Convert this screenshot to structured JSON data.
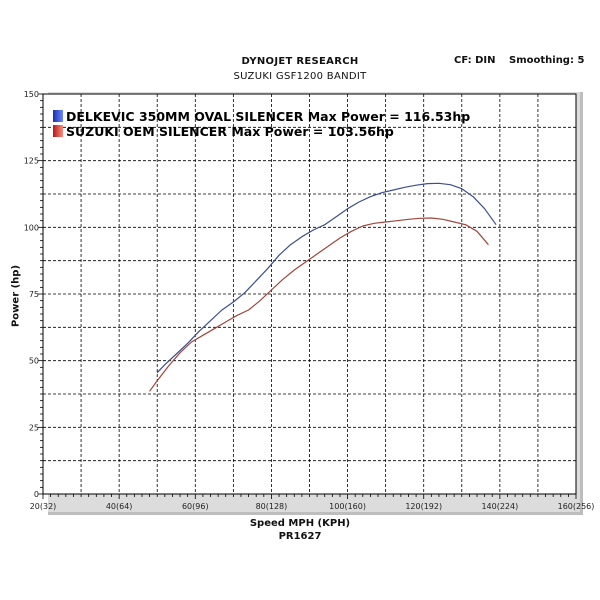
{
  "header": {
    "title": "DYNOJET RESEARCH",
    "subtitle": "SUZUKI GSF1200 BANDIT",
    "cf": "CF: DIN",
    "smoothing": "Smoothing: 5"
  },
  "chart_data": {
    "type": "line",
    "title": "DYNOJET RESEARCH",
    "subtitle": "SUZUKI GSF1200 BANDIT",
    "xlabel": "Speed MPH (KPH)",
    "ylabel": "Power (hp)",
    "note": "PR1627",
    "xlim": [
      20,
      160
    ],
    "ylim": [
      0,
      150
    ],
    "grid": true,
    "legend_position": "top-left",
    "x_ticks": [
      {
        "value": 20,
        "label": "20(32)"
      },
      {
        "value": 40,
        "label": "40(64)"
      },
      {
        "value": 60,
        "label": "60(96)"
      },
      {
        "value": 80,
        "label": "80(128)"
      },
      {
        "value": 100,
        "label": "100(160)"
      },
      {
        "value": 120,
        "label": "120(192)"
      },
      {
        "value": 140,
        "label": "140(224)"
      },
      {
        "value": 160,
        "label": "160(256)"
      }
    ],
    "y_ticks": [
      {
        "value": 0,
        "label": "0"
      },
      {
        "value": 25,
        "label": "25"
      },
      {
        "value": 50,
        "label": "50"
      },
      {
        "value": 75,
        "label": "75"
      },
      {
        "value": 100,
        "label": "100"
      },
      {
        "value": 125,
        "label": "125"
      },
      {
        "value": 150,
        "label": "150"
      }
    ],
    "series": [
      {
        "name": "DELKEVIC 350MM OVAL SILENCER",
        "legend": "DELKEVIC 350MM OVAL SILENCER  Max Power = 116.53hp",
        "color": "#3d4f8c",
        "x": [
          50,
          52,
          55,
          58,
          61,
          64,
          67,
          70,
          73,
          76,
          79,
          82,
          85,
          88,
          91,
          94,
          97,
          100,
          103,
          106,
          109,
          112,
          115,
          118,
          121,
          124,
          127,
          130,
          133,
          136,
          139
        ],
        "y": [
          45.5,
          48.5,
          52.5,
          56.5,
          61,
          65,
          69,
          72,
          75.5,
          80,
          84.5,
          89.5,
          93.5,
          96.5,
          99,
          101,
          104,
          107,
          109.5,
          111.5,
          113,
          114,
          115,
          115.8,
          116.4,
          116.5,
          116,
          114.5,
          111.5,
          107,
          101
        ]
      },
      {
        "name": "SUZUKI OEM SILENCER",
        "legend": "SUZUKI OEM SILENCER Max Power = 103.56hp",
        "color": "#a0463c",
        "x": [
          48,
          50,
          53,
          56,
          59,
          62,
          65,
          68,
          71,
          74,
          77,
          80,
          83,
          86,
          89,
          92,
          95,
          98,
          101,
          104,
          107,
          110,
          113,
          116,
          119,
          122,
          125,
          128,
          131,
          134,
          137
        ],
        "y": [
          38.5,
          42.5,
          48,
          53,
          57,
          59.5,
          62,
          64.5,
          67,
          69,
          72.5,
          76.5,
          80.5,
          84,
          87,
          90,
          93,
          96,
          98.5,
          100.5,
          101.5,
          102,
          102.5,
          103,
          103.4,
          103.5,
          103,
          102,
          101,
          98.5,
          93.5
        ]
      }
    ]
  }
}
